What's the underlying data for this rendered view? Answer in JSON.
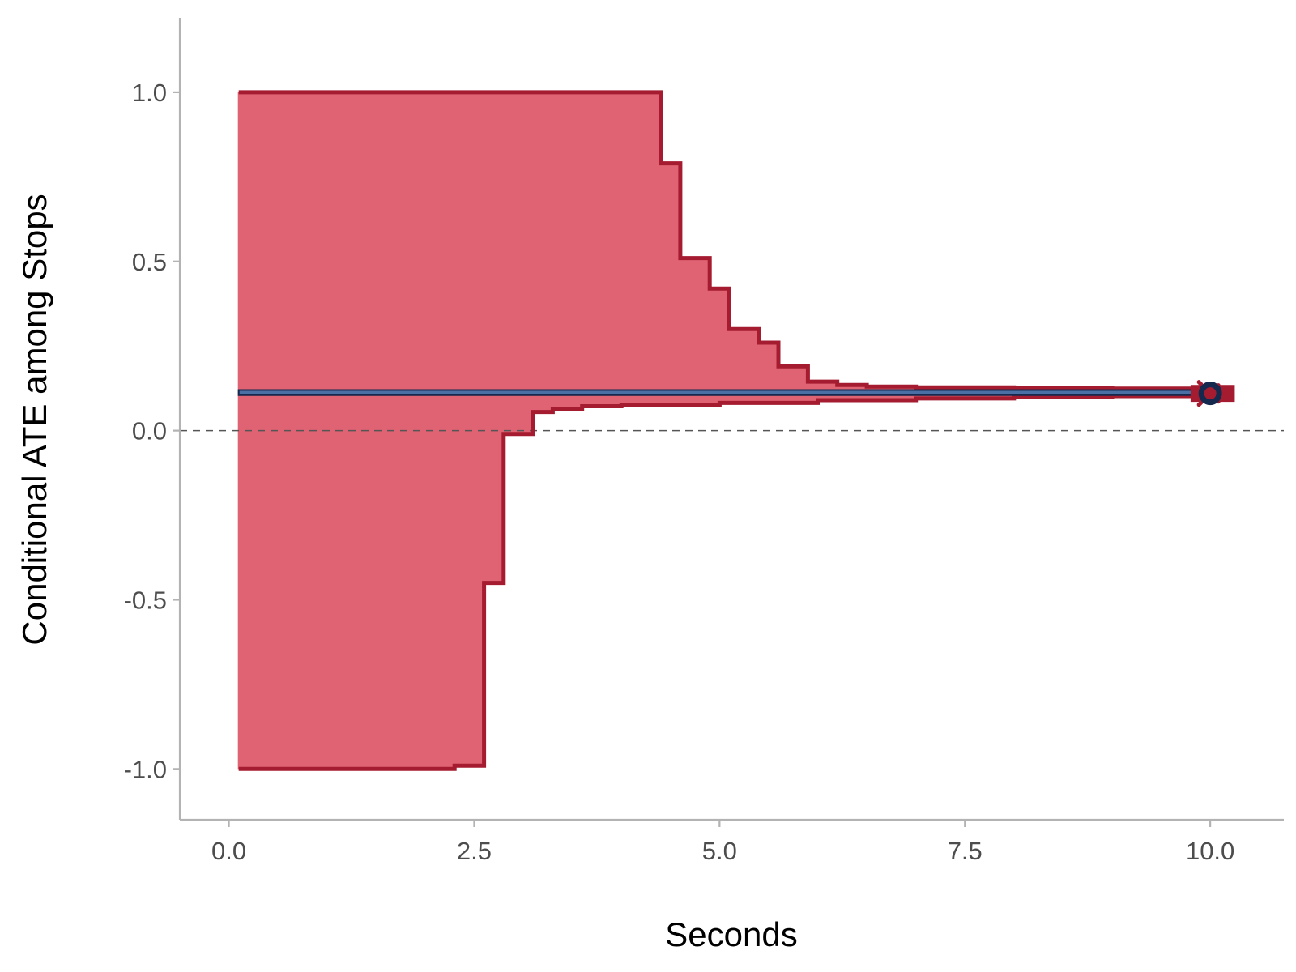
{
  "chart_data": {
    "type": "line",
    "title": "",
    "xlabel": "Seconds",
    "ylabel": "Conditional ATE among Stops",
    "xlim": [
      -0.5,
      10.75
    ],
    "ylim": [
      -1.15,
      1.22
    ],
    "xticks": [
      0.0,
      2.5,
      5.0,
      7.5,
      10.0
    ],
    "xtick_labels": [
      "0.0",
      "2.5",
      "5.0",
      "7.5",
      "10.0"
    ],
    "yticks": [
      -1.0,
      -0.5,
      0.0,
      0.5,
      1.0
    ],
    "ytick_labels": [
      "-1.0",
      "-0.5",
      "0.0",
      "0.5",
      "1.0"
    ],
    "grid": false,
    "reference_line": {
      "y": 0.0,
      "style": "dashed",
      "color": "#555555"
    },
    "bounds_band": {
      "color_fill": "#e06373",
      "color_line": "#a51c30",
      "upper": {
        "x": [
          0.1,
          4.4,
          4.6,
          4.9,
          5.1,
          5.4,
          5.6,
          5.9,
          6.2,
          6.5,
          7.0,
          8.0,
          9.0,
          10.0
        ],
        "y": [
          1.0,
          0.79,
          0.51,
          0.42,
          0.3,
          0.26,
          0.19,
          0.145,
          0.135,
          0.13,
          0.128,
          0.126,
          0.124,
          0.122
        ]
      },
      "lower": {
        "x": [
          0.1,
          2.3,
          2.6,
          2.8,
          3.1,
          3.3,
          3.6,
          4.0,
          5.0,
          6.0,
          7.0,
          8.0,
          9.0,
          10.0
        ],
        "y": [
          -1.0,
          -0.99,
          -0.45,
          -0.01,
          0.055,
          0.065,
          0.072,
          0.076,
          0.082,
          0.09,
          0.095,
          0.1,
          0.102,
          0.105
        ]
      }
    },
    "estimate_band": {
      "x_start": 0.1,
      "x_end": 10.0,
      "y_low": 0.105,
      "y_high": 0.12,
      "color_fill": "#4a6fa5",
      "color_line": "#15284d"
    },
    "endpoint": {
      "x": 10.0,
      "y": 0.11,
      "bounds_rect": {
        "x_start": 9.8,
        "x_end": 10.25,
        "y_low": 0.085,
        "y_high": 0.135,
        "color": "#a51c30"
      },
      "marker_color": "#15284d",
      "cross_color": "#a51c30"
    }
  }
}
